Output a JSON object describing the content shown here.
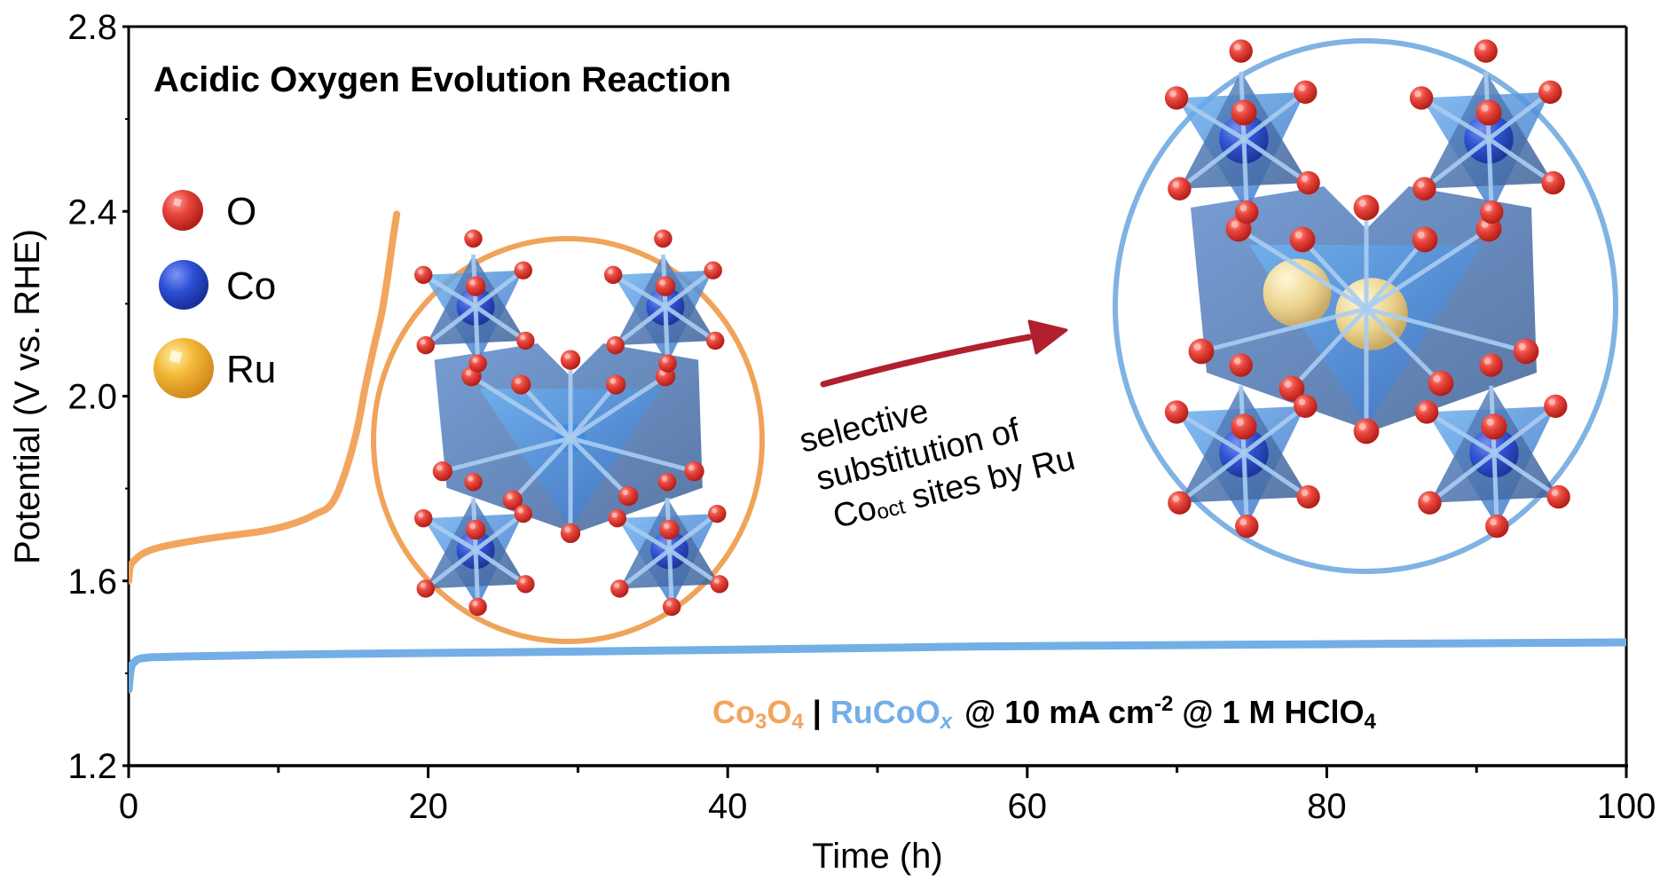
{
  "chart_data": {
    "type": "line",
    "title": "Acidic Oxygen Evolution Reaction",
    "xlabel": "Time (h)",
    "ylabel": "Potential (V vs. RHE)",
    "xlim": [
      0,
      100
    ],
    "ylim": [
      1.2,
      2.8
    ],
    "xticks": [
      0,
      20,
      40,
      60,
      80,
      100
    ],
    "xtick_labels": [
      "0",
      "20",
      "40",
      "60",
      "80",
      "100"
    ],
    "xminor": [
      10,
      30,
      50,
      70,
      90
    ],
    "yticks": [
      1.2,
      1.6,
      2.0,
      2.4,
      2.8
    ],
    "ytick_labels": [
      "1.2",
      "1.6",
      "2.0",
      "2.4",
      "2.8"
    ],
    "grid": false,
    "series": [
      {
        "name": "Co3O4",
        "color": "#f2a55e",
        "x": [
          0,
          0.1,
          0.4,
          1,
          2,
          4,
          6,
          8.6,
          10,
          11.5,
          12.5,
          13.5,
          14.3,
          15.2,
          15.8,
          16.4,
          16.9,
          17.3,
          17.6,
          17.9
        ],
        "y": [
          1.6,
          1.63,
          1.645,
          1.66,
          1.672,
          1.685,
          1.695,
          1.706,
          1.715,
          1.73,
          1.745,
          1.765,
          1.82,
          1.92,
          2.02,
          2.11,
          2.18,
          2.26,
          2.33,
          2.394
        ]
      },
      {
        "name": "RuCoOx",
        "color": "#74aee6",
        "x": [
          0,
          0.15,
          0.4,
          1,
          3,
          10,
          20,
          30,
          40,
          50,
          56.7,
          70,
          80,
          90,
          100
        ],
        "y": [
          1.365,
          1.41,
          1.425,
          1.433,
          1.436,
          1.44,
          1.444,
          1.447,
          1.451,
          1.455,
          1.458,
          1.461,
          1.463,
          1.465,
          1.467
        ]
      }
    ]
  },
  "legend": {
    "items": [
      {
        "label": "O",
        "color": "#e8453c",
        "icon": "oxygen-atom-sphere"
      },
      {
        "label": "Co",
        "color": "#2c4fd6",
        "icon": "cobalt-atom-sphere"
      },
      {
        "label": "Ru",
        "color": "#f3b93a",
        "icon": "ruthenium-atom-sphere"
      }
    ]
  },
  "annotation": {
    "line1": "selective",
    "line2": "substitution of",
    "line3_main": "Co",
    "line3_sub": "oct",
    "line3_rest": " sites by Ru",
    "arrow_color": "#b0202e"
  },
  "insets": {
    "left": {
      "name": "Co3O4 structure",
      "ring_color": "#f0a35a"
    },
    "right": {
      "name": "RuCoOx structure",
      "ring_color": "#7fb3e3"
    }
  },
  "conditions": {
    "co3o4_main": "Co",
    "co3o4_sub1": "3",
    "co3o4_mid": "O",
    "co3o4_sub2": "4",
    "separator": "|",
    "rucoox_main": "RuCoO",
    "rucoox_sub": "x",
    "cond1": "@ 10 mA cm",
    "cond1_sup": "-2",
    "cond2": " @ 1 M HClO",
    "cond2_sub": "4",
    "co3o4_color": "#f2a55e",
    "rucoox_color": "#74aee6"
  }
}
